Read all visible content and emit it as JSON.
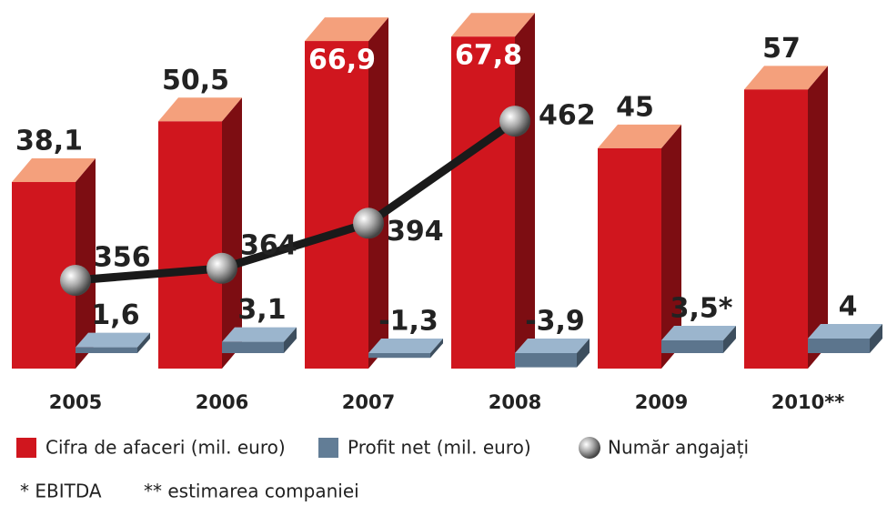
{
  "chart_data": {
    "type": "bar",
    "categories": [
      "2005",
      "2006",
      "2007",
      "2008",
      "2009",
      "2010**"
    ],
    "series": [
      {
        "name": "Cifra de afaceri (mil. euro)",
        "color": "#d0161e",
        "type": "bar",
        "values": [
          38.1,
          50.5,
          66.9,
          67.8,
          45,
          57
        ],
        "value_labels": [
          "38,1",
          "50,5",
          "66,9",
          "67,8",
          "45",
          "57"
        ]
      },
      {
        "name": "Profit net (mil. euro)",
        "color": "#7a9cbc",
        "type": "bar",
        "values": [
          1.6,
          3.1,
          -1.3,
          -3.9,
          3.5,
          4
        ],
        "value_labels": [
          "1,6",
          "3,1",
          "-1,3",
          "-3,9",
          "3,5*",
          "4"
        ]
      },
      {
        "name": "Număr angajați",
        "color": "#999999",
        "type": "line",
        "values": [
          356,
          364,
          394,
          462,
          null,
          null
        ]
      }
    ],
    "footnotes": [
      "* EBITDA",
      "** estimarea companiei"
    ]
  }
}
